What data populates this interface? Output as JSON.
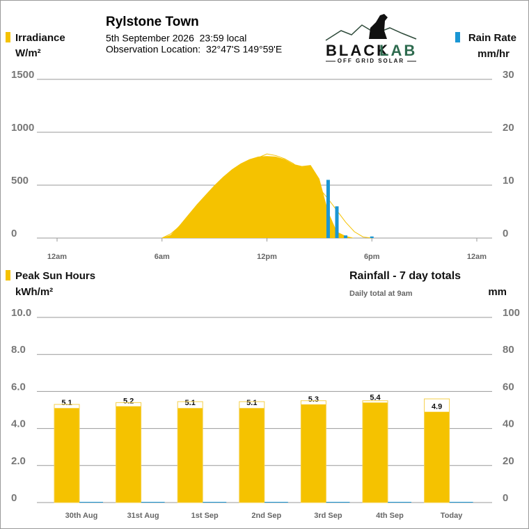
{
  "header": {
    "title": "Rylstone Town",
    "date": "5th September 2026  23:59 local",
    "location": "Observation Location:  32°47'S 149°59'E"
  },
  "logo": {
    "name_1": "BLACK",
    "name_2": "LAB",
    "tagline": "OFF GRID SOLAR"
  },
  "chart_data": [
    {
      "type": "area",
      "y_label": "W/m²",
      "y2_label": "mm/hr",
      "x": [
        6,
        6.5,
        7,
        7.5,
        8,
        8.5,
        9,
        9.5,
        10,
        10.5,
        11,
        11.5,
        12,
        12.5,
        13,
        13.5,
        14,
        14.5,
        15,
        15.5,
        16,
        16.5,
        17,
        17.5,
        18
      ],
      "series": [
        {
          "name": "Irradiance",
          "type": "area",
          "color": "#f5c200",
          "values": [
            0,
            30,
            120,
            220,
            320,
            410,
            500,
            580,
            650,
            705,
            745,
            770,
            775,
            770,
            745,
            700,
            680,
            690,
            560,
            250,
            60,
            20,
            0,
            0,
            0
          ]
        },
        {
          "type": "line",
          "color": "#f5c200",
          "values": [
            0,
            40,
            110,
            190,
            280,
            370,
            460,
            540,
            610,
            670,
            720,
            760,
            795,
            780,
            750,
            705,
            640,
            560,
            470,
            370,
            260,
            150,
            60,
            10,
            0
          ]
        },
        {
          "name": "Rain Rate",
          "type": "bar",
          "axis": "y2",
          "color": "#1a96d4",
          "values": [
            0,
            0,
            0,
            0,
            0,
            0,
            0,
            0,
            0,
            0,
            0,
            0,
            0,
            0,
            0,
            0,
            0,
            0,
            0,
            11,
            6,
            0.5,
            0,
            0,
            0.3
          ]
        }
      ],
      "xlim": [
        0,
        24
      ],
      "xticks": [
        {
          "value": 0,
          "label": "12am"
        },
        {
          "value": 6,
          "label": "6am"
        },
        {
          "value": 12,
          "label": "12pm"
        },
        {
          "value": 18,
          "label": "6pm"
        },
        {
          "value": 24,
          "label": "12am"
        }
      ],
      "ylim": [
        0,
        1500
      ],
      "yticks": [
        0,
        500,
        1000,
        1500
      ],
      "y2lim": [
        0,
        30
      ],
      "y2ticks": [
        0,
        10,
        20,
        30
      ],
      "grid": true
    },
    {
      "type": "bar",
      "y_label": "kWh/m²",
      "y2_label": "mm",
      "subtitle": "Daily total at 9am",
      "categories": [
        "30th Aug",
        "31st Aug",
        "1st Sep",
        "2nd Sep",
        "3rd Sep",
        "4th Sep",
        "Today"
      ],
      "series": [
        {
          "name": "Peak Sun Hours",
          "type": "bar",
          "color": "#f5c200",
          "values": [
            5.1,
            5.2,
            5.1,
            5.1,
            5.3,
            5.4,
            4.9
          ]
        },
        {
          "type": "outline",
          "color": "#f5d04a",
          "values": [
            5.3,
            5.4,
            5.45,
            5.45,
            5.5,
            5.5,
            5.6
          ]
        },
        {
          "name": "Rainfall - 7 day totals",
          "type": "bar",
          "axis": "y2",
          "color": "#1a96d4",
          "values": [
            0,
            0,
            0,
            0,
            0,
            0,
            0
          ]
        }
      ],
      "ylim": [
        0,
        10
      ],
      "yticks": [
        0,
        {
          "value": 2,
          "label": "2.0"
        },
        {
          "value": 4,
          "label": "4.0"
        },
        {
          "value": 6,
          "label": "6.0"
        },
        {
          "value": 8,
          "label": "8.0"
        },
        {
          "value": 10,
          "label": "10.0"
        }
      ],
      "y2lim": [
        0,
        100
      ],
      "y2ticks": [
        0,
        20,
        40,
        60,
        80,
        100
      ],
      "grid": true
    }
  ]
}
